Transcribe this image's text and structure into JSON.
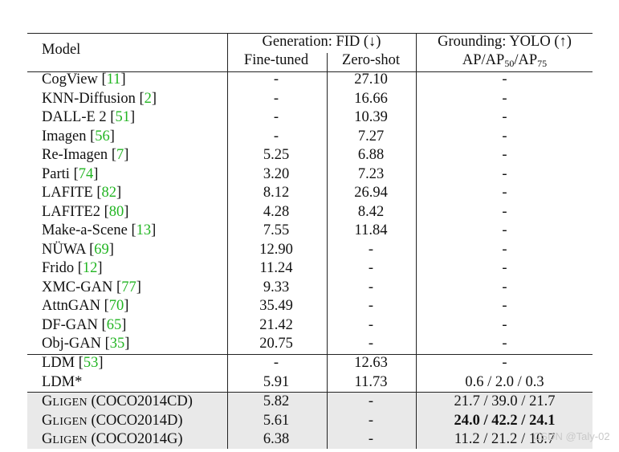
{
  "header": {
    "model": "Model",
    "generation": "Generation: FID (↓)",
    "grounding": "Grounding: YOLO (↑)",
    "finetuned": "Fine-tuned",
    "zeroshot": "Zero-shot",
    "ap": "AP",
    "ap_sep": "/AP",
    "sub50": "50",
    "sub75": "75"
  },
  "rows": [
    {
      "name": "CogView",
      "cite": "11",
      "ft": "-",
      "zs": "27.10",
      "yolo": "-"
    },
    {
      "name": "KNN-Diffusion",
      "cite": "2",
      "ft": "-",
      "zs": "16.66",
      "yolo": "-"
    },
    {
      "name": "DALL-E 2",
      "cite": "51",
      "ft": "-",
      "zs": "10.39",
      "yolo": "-"
    },
    {
      "name": "Imagen",
      "cite": "56",
      "ft": "-",
      "zs": "7.27",
      "yolo": "-"
    },
    {
      "name": "Re-Imagen",
      "cite": "7",
      "ft": "5.25",
      "zs": "6.88",
      "yolo": "-"
    },
    {
      "name": "Parti",
      "cite": "74",
      "ft": "3.20",
      "zs": "7.23",
      "yolo": "-"
    },
    {
      "name": "LAFITE",
      "cite": "82",
      "ft": "8.12",
      "zs": "26.94",
      "yolo": "-"
    },
    {
      "name": "LAFITE2",
      "cite": "80",
      "ft": "4.28",
      "zs": "8.42",
      "yolo": "-"
    },
    {
      "name": "Make-a-Scene",
      "cite": "13",
      "ft": "7.55",
      "zs": "11.84",
      "yolo": "-"
    },
    {
      "name": "NÜWA",
      "cite": "69",
      "ft": "12.90",
      "zs": "-",
      "yolo": "-"
    },
    {
      "name": "Frido",
      "cite": "12",
      "ft": "11.24",
      "zs": "-",
      "yolo": "-"
    },
    {
      "name": "XMC-GAN",
      "cite": "77",
      "ft": "9.33",
      "zs": "-",
      "yolo": "-"
    },
    {
      "name": "AttnGAN",
      "cite": "70",
      "ft": "35.49",
      "zs": "-",
      "yolo": "-"
    },
    {
      "name": "DF-GAN",
      "cite": "65",
      "ft": "21.42",
      "zs": "-",
      "yolo": "-"
    },
    {
      "name": "Obj-GAN",
      "cite": "35",
      "ft": "20.75",
      "zs": "-",
      "yolo": "-"
    }
  ],
  "ldm_rows": [
    {
      "name": "LDM",
      "cite": "53",
      "ft": "-",
      "zs": "12.63",
      "yolo": "-"
    },
    {
      "name": "LDM*",
      "cite": "",
      "ft": "5.91",
      "zs": "11.73",
      "yolo": "0.6 / 2.0 / 0.3"
    }
  ],
  "gligen_rows": [
    {
      "name_big": "G",
      "name_small": "LIGEN",
      "suffix": " (COCO2014CD)",
      "ft": "5.82",
      "zs": "-",
      "yolo": "21.7 / 39.0 / 21.7"
    },
    {
      "name_big": "G",
      "name_small": "LIGEN",
      "suffix": " (COCO2014D)",
      "ft": "5.61",
      "zs": "-",
      "yolo": "24.0 / 42.2 / 24.1"
    },
    {
      "name_big": "G",
      "name_small": "LIGEN",
      "suffix": " (COCO2014G)",
      "ft": "6.38",
      "zs": "-",
      "yolo": "11.2 / 21.2 / 10.7"
    }
  ],
  "watermark": "CSDN @Taly-02"
}
